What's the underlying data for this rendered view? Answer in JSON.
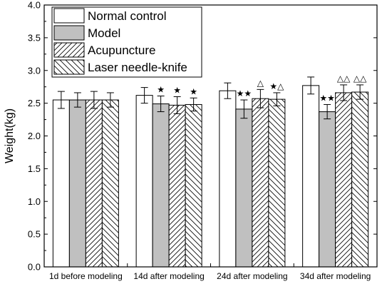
{
  "chart_data": {
    "type": "bar",
    "ylabel": "Weight(kg)",
    "xlabel": "",
    "ylim": [
      0,
      4.0
    ],
    "yticks": [
      "0.0",
      "0.5",
      "1.0",
      "1.5",
      "2.0",
      "2.5",
      "3.0",
      "3.5",
      "4.0"
    ],
    "grid": false,
    "legend_position": "top-left",
    "categories": [
      "1d before modeling",
      "14d after modeling",
      "24d after modeling",
      "34d after modeling"
    ],
    "series": [
      {
        "name": "Normal control",
        "pattern": "white",
        "values": [
          2.55,
          2.62,
          2.69,
          2.77
        ],
        "errors": [
          0.13,
          0.12,
          0.12,
          0.13
        ],
        "marks": [
          "",
          "",
          "",
          ""
        ]
      },
      {
        "name": "Model",
        "pattern": "gray",
        "values": [
          2.55,
          2.49,
          2.41,
          2.37
        ],
        "errors": [
          0.11,
          0.12,
          0.14,
          0.11
        ],
        "marks": [
          "",
          "★",
          "★★",
          "★★"
        ]
      },
      {
        "name": "Acupuncture",
        "pattern": "diagonal-forward",
        "values": [
          2.55,
          2.47,
          2.57,
          2.66
        ],
        "errors": [
          0.13,
          0.13,
          0.14,
          0.12
        ],
        "marks": [
          "",
          "★",
          "△",
          "△△"
        ]
      },
      {
        "name": "Laser needle-knife",
        "pattern": "diagonal-back",
        "values": [
          2.55,
          2.48,
          2.56,
          2.67
        ],
        "errors": [
          0.11,
          0.1,
          0.1,
          0.11
        ],
        "marks": [
          "",
          "★",
          "★△",
          "△△"
        ]
      }
    ],
    "colors": {
      "gray_fill": "#c0c0c0",
      "border": "#000000",
      "background": "#ffffff"
    }
  }
}
